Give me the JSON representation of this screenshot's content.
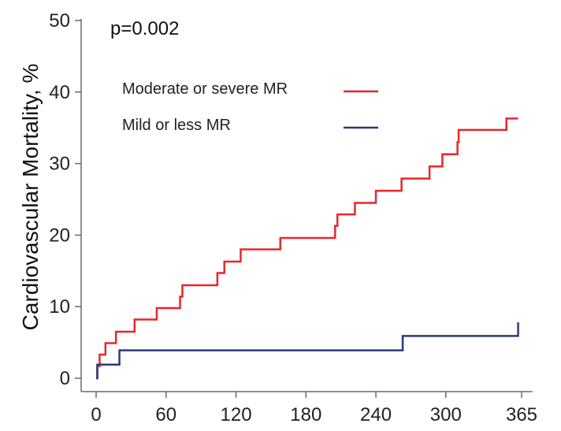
{
  "chart_data": {
    "type": "line",
    "title": "",
    "xlabel": "",
    "ylabel": "Cardiovascular Mortality, %",
    "annotation": "p=0.002",
    "xlim": [
      0,
      370
    ],
    "ylim": [
      0,
      50
    ],
    "x_ticks": [
      0,
      60,
      120,
      180,
      240,
      300,
      365
    ],
    "y_ticks": [
      0,
      10,
      20,
      30,
      40,
      50
    ],
    "grid": false,
    "legend_position": "top-left",
    "series": [
      {
        "name": "Moderate or severe MR",
        "color": "#e8262b",
        "step": true,
        "points": [
          [
            0,
            0
          ],
          [
            1,
            1.7
          ],
          [
            3,
            3.3
          ],
          [
            8,
            4.9
          ],
          [
            17,
            6.5
          ],
          [
            33,
            8.2
          ],
          [
            52,
            9.8
          ],
          [
            72,
            11.4
          ],
          [
            74,
            13.0
          ],
          [
            104,
            14.7
          ],
          [
            110,
            16.3
          ],
          [
            124,
            18.0
          ],
          [
            158,
            19.6
          ],
          [
            205,
            21.3
          ],
          [
            207,
            22.9
          ],
          [
            222,
            24.5
          ],
          [
            240,
            26.2
          ],
          [
            262,
            27.9
          ],
          [
            286,
            29.6
          ],
          [
            297,
            31.3
          ],
          [
            310,
            33.0
          ],
          [
            311,
            34.7
          ],
          [
            352,
            36.3
          ],
          [
            362,
            36.3
          ]
        ]
      },
      {
        "name": "Mild or less MR",
        "color": "#2b3a78",
        "step": true,
        "points": [
          [
            0,
            0
          ],
          [
            1,
            1.9
          ],
          [
            20,
            3.9
          ],
          [
            263,
            5.9
          ],
          [
            362,
            7.8
          ]
        ]
      }
    ]
  }
}
